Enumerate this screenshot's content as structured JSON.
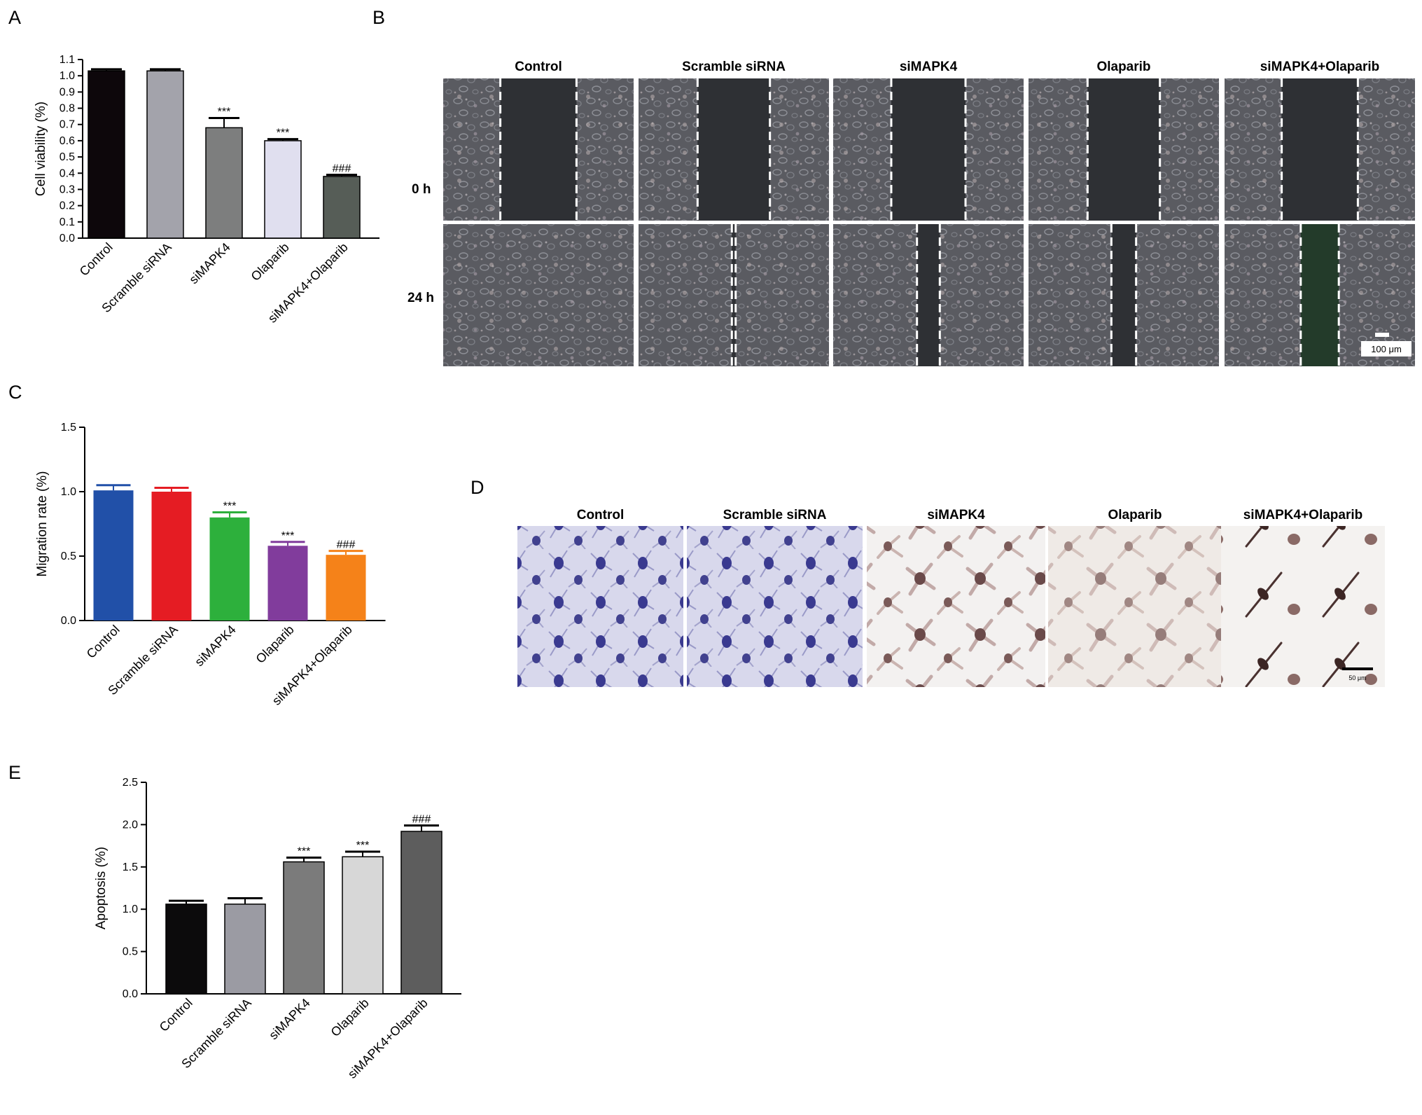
{
  "panels": {
    "A": "A",
    "B": "B",
    "C": "C",
    "D": "D",
    "E": "E"
  },
  "colors": {
    "axis": "#000000",
    "panel_A": [
      "#0d070b",
      "#a3a3ab",
      "#7d7e7e",
      "#e0dfef",
      "#565d57"
    ],
    "panel_C": [
      "#2150a8",
      "#e51c23",
      "#2db03c",
      "#813c9c",
      "#f58219"
    ],
    "panel_E": [
      "#0c0b0c",
      "#9b9ba3",
      "#7b7b7b",
      "#d7d7d7",
      "#5d5d5d"
    ],
    "micrograph_B": "#55565c",
    "wound_gap": "#2e3034",
    "stain_purple": "#3a3a90",
    "stain_brown": "#6a4a4a"
  },
  "panel_B": {
    "columns": [
      "Control",
      "Scramble siRNA",
      "siMAPK4",
      "Olaparib",
      "siMAPK4+Olaparib"
    ],
    "rows": [
      "0 h",
      "24 h"
    ],
    "gap_fraction_0h": [
      0.4,
      0.38,
      0.39,
      0.38,
      0.4
    ],
    "gap_fraction_24h": [
      0.0,
      0.02,
      0.12,
      0.13,
      0.2
    ],
    "scale_bar": "100 μm"
  },
  "panel_D": {
    "columns": [
      "Control",
      "Scramble siRNA",
      "siMAPK4",
      "Olaparib",
      "siMAPK4+Olaparib"
    ],
    "stains": [
      "purple",
      "purple",
      "brown-light",
      "brown",
      "brown-sparse"
    ],
    "scale_bar": "50 μm"
  },
  "chart_data": [
    {
      "type": "bar",
      "panel": "A",
      "categories": [
        "Control",
        "Scramble siRNA",
        "siMAPK4",
        "Olaparib",
        "siMAPK4+Olaparib"
      ],
      "values": [
        1.03,
        1.03,
        0.68,
        0.6,
        0.38
      ],
      "errors": [
        0.01,
        0.01,
        0.06,
        0.01,
        0.01
      ],
      "annotations": [
        "",
        "",
        "***",
        "***",
        "###"
      ],
      "ylabel": "Cell viability (%)",
      "ylim": [
        0,
        1.1
      ],
      "yticks": [
        "0.0",
        "0.1",
        "0.2",
        "0.3",
        "0.4",
        "0.5",
        "0.6",
        "0.7",
        "0.8",
        "0.9",
        "1.0",
        "1.1"
      ],
      "grid": false
    },
    {
      "type": "bar",
      "panel": "C",
      "categories": [
        "Control",
        "Scramble siRNA",
        "siMAPK4",
        "Olaparib",
        "siMAPK4+Olaparib"
      ],
      "values": [
        1.01,
        1.0,
        0.8,
        0.58,
        0.51
      ],
      "errors": [
        0.04,
        0.03,
        0.04,
        0.03,
        0.03
      ],
      "annotations": [
        "",
        "",
        "***",
        "***",
        "###"
      ],
      "ylabel": "Migration rate (%)",
      "ylim": [
        0,
        1.5
      ],
      "yticks": [
        "0.0",
        "0.5",
        "1.0",
        "1.5"
      ],
      "grid": false
    },
    {
      "type": "bar",
      "panel": "E",
      "categories": [
        "Control",
        "Scramble siRNA",
        "siMAPK4",
        "Olaparib",
        "siMAPK4+Olaparib"
      ],
      "values": [
        1.06,
        1.06,
        1.56,
        1.62,
        1.92
      ],
      "errors": [
        0.04,
        0.07,
        0.05,
        0.06,
        0.07
      ],
      "annotations": [
        "",
        "",
        "***",
        "***",
        "###"
      ],
      "ylabel": "Apoptosis (%)",
      "ylim": [
        0,
        2.5
      ],
      "yticks": [
        "0.0",
        "0.5",
        "1.0",
        "1.5",
        "2.0",
        "2.5"
      ],
      "grid": false
    }
  ]
}
